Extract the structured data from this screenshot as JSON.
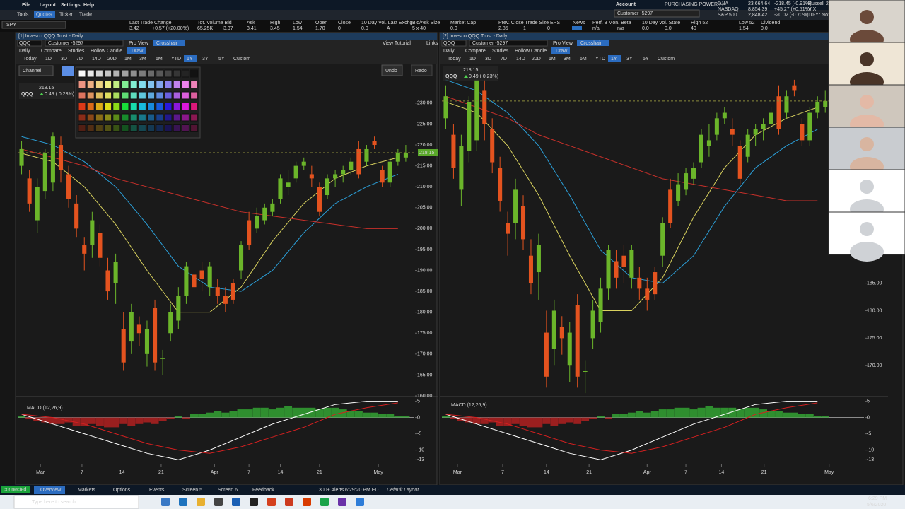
{
  "menu": [
    "File",
    "Layout",
    "Settings",
    "Help"
  ],
  "tabs": [
    "Tools",
    "Quotes",
    "Ticker",
    "Trade"
  ],
  "symbol": "SPY",
  "quote": [
    {
      "label": "Last Trade Change",
      "values": [
        "3.42",
        "+0.57 (+20.00%)"
      ]
    },
    {
      "label": "Tot. Volume Bid",
      "values": [
        "65.25K",
        "3.37"
      ]
    },
    {
      "label": "Ask",
      "values": [
        "3.41"
      ]
    },
    {
      "label": "High",
      "values": [
        "3.45"
      ]
    },
    {
      "label": "Low",
      "values": [
        "1.54"
      ]
    },
    {
      "label": "Open",
      "values": [
        "1.70"
      ]
    },
    {
      "label": "Close",
      "values": [
        "0"
      ]
    },
    {
      "label": "10 Day Vol. Last Exchg.",
      "values": [
        "0.0",
        "A"
      ]
    },
    {
      "label": "Bid/Ask Size",
      "values": [
        "5 x 40"
      ]
    },
    {
      "label": "Market Cap",
      "values": [
        "0.0"
      ]
    },
    {
      "label": "Prev. Close Trade Size EPS",
      "values": [
        "2.85",
        "1",
        "0"
      ]
    },
    {
      "label": "News",
      "values": []
    },
    {
      "label": "Perf. 3 Mon. Beta",
      "values": [
        "n/a",
        "n/a"
      ]
    },
    {
      "label": "10 Day Vol. State",
      "values": [
        "0.0",
        "0.0"
      ]
    },
    {
      "label": "High 52",
      "values": [
        "40"
      ]
    },
    {
      "label": "Low 52",
      "values": [
        "1.54"
      ]
    },
    {
      "label": "Dividend",
      "values": [
        "0.0"
      ]
    }
  ],
  "account": {
    "label": "Account",
    "name": "Customer -5297",
    "power": "PURCHASING POWER >>"
  },
  "indices": [
    {
      "name": "DJIA",
      "value": "23,664.64",
      "change": "-218.45 (-0.91%)",
      "next": "Russell 20"
    },
    {
      "name": "NASDAQ",
      "value": "8,854.39",
      "change": "+45.27 (+0.51%)",
      "next": "VIX"
    },
    {
      "name": "S&P 500",
      "value": "2,848.42",
      "change": "-20.02 (-0.70%)",
      "next": "10-Yr Note"
    }
  ],
  "panels": [
    {
      "title": "[1] Invesco QQQ Trust - Daily",
      "symbol": "QQQ",
      "account": "Customer -5297",
      "view": "Pro View",
      "mode": "Crosshair",
      "links": [
        "View Tutorial",
        "Links"
      ],
      "toolbar": [
        "Daily",
        "Compare",
        "Studies",
        "Hollow Candle",
        "Draw"
      ],
      "ranges": [
        "Today",
        "1D",
        "3D",
        "7D",
        "14D",
        "20D",
        "1M",
        "3M",
        "6M",
        "YTD",
        "1Y",
        "3Y",
        "5Y",
        "Custom"
      ],
      "active_range": "1Y",
      "drawing": {
        "tool": "Channel",
        "undo": "Undo",
        "redo": "Redo"
      },
      "legend": {
        "symbol": "QQQ",
        "price": "218.15",
        "change": "0.49 ( 0.23%)"
      },
      "price_tag": "218.15"
    },
    {
      "title": "[2] Invesco QQQ Trust - Daily",
      "symbol": "QQQ",
      "account": "Customer -5297",
      "view": "Pro View",
      "mode": "Crosshair",
      "links": [],
      "toolbar": [
        "Daily",
        "Compare",
        "Studies",
        "Hollow Candle",
        "Draw"
      ],
      "ranges": [
        "Today",
        "1D",
        "3D",
        "7D",
        "14D",
        "20D",
        "1M",
        "3M",
        "6M",
        "YTD",
        "1Y",
        "3Y",
        "5Y",
        "Custom"
      ],
      "active_range": "1Y",
      "legend": {
        "symbol": "QQQ",
        "price": "218.15",
        "change": "0.49 ( 0.23%)"
      }
    }
  ],
  "chart_data": [
    {
      "type": "candlestick",
      "up_color": "#6bb52a",
      "down_color": "#e4531f",
      "open": [
        215,
        212,
        202,
        209,
        211,
        220,
        213,
        206,
        196,
        196,
        199,
        190,
        187,
        176,
        173,
        177,
        170,
        181,
        169,
        175,
        178,
        184,
        189,
        190,
        186,
        186,
        184,
        187,
        190,
        202,
        200,
        202,
        204,
        207,
        210,
        212,
        215,
        213,
        210,
        208,
        212,
        213,
        214,
        219,
        216,
        221,
        214,
        211,
        216,
        217
      ],
      "high": [
        221,
        214,
        212,
        219,
        223,
        222,
        215,
        208,
        198,
        204,
        201,
        193,
        194,
        180,
        182,
        179,
        178,
        183,
        171,
        182,
        186,
        192,
        191,
        192,
        192,
        188,
        186,
        188,
        197,
        204,
        205,
        206,
        207,
        213,
        214,
        216,
        217,
        215,
        211,
        213,
        214,
        215,
        217,
        221,
        220,
        222,
        215,
        217,
        219,
        220
      ],
      "low": [
        213,
        204,
        199,
        207,
        209,
        211,
        205,
        198,
        190,
        193,
        191,
        183,
        182,
        166,
        170,
        172,
        167,
        166,
        165,
        173,
        176,
        182,
        184,
        185,
        184,
        182,
        180,
        182,
        188,
        195,
        199,
        201,
        203,
        206,
        208,
        211,
        214,
        210,
        203,
        207,
        210,
        211,
        213,
        212,
        215,
        219,
        210,
        210,
        215,
        216
      ],
      "close": [
        219,
        206,
        210,
        218,
        222,
        214,
        207,
        200,
        194,
        202,
        193,
        185,
        192,
        168,
        180,
        175,
        176,
        168,
        169,
        180,
        184,
        191,
        186,
        188,
        191,
        184,
        182,
        183,
        196,
        196,
        203,
        205,
        206,
        212,
        211,
        215,
        216,
        212,
        204,
        212,
        213,
        214,
        216,
        213,
        219,
        220,
        211,
        216,
        218,
        218.15
      ],
      "xlim": [
        -0.5,
        50
      ],
      "ylim": [
        160,
        238.6
      ],
      "yticks": [
        {
          "value": 230,
          "label": "230.00"
        },
        {
          "value": 225,
          "label": "225.00"
        },
        {
          "value": 220,
          "label": "220.00"
        },
        {
          "value": 215,
          "label": "215.00"
        },
        {
          "value": 210,
          "label": "210.00"
        },
        {
          "value": 205,
          "label": "205.00"
        },
        {
          "value": 200,
          "label": "200.00"
        },
        {
          "value": 195,
          "label": "195.00"
        },
        {
          "value": 190,
          "label": "190.00"
        },
        {
          "value": 185,
          "label": "185.00"
        },
        {
          "value": 180,
          "label": "180.00"
        },
        {
          "value": 175,
          "label": "175.00"
        },
        {
          "value": 170,
          "label": "170.00"
        },
        {
          "value": 165,
          "label": "165.00"
        },
        {
          "value": 160,
          "label": "160.00"
        }
      ],
      "xticks": [
        {
          "value": 2.4,
          "label": "Mar"
        },
        {
          "value": 7.7,
          "label": "7"
        },
        {
          "value": 12.8,
          "label": "14"
        },
        {
          "value": 17.8,
          "label": "21"
        },
        {
          "value": 24.6,
          "label": "Apr"
        },
        {
          "value": 29,
          "label": "7"
        },
        {
          "value": 33,
          "label": "14"
        },
        {
          "value": 38,
          "label": "21"
        },
        {
          "value": 45.5,
          "label": "May"
        }
      ],
      "ma": [
        {
          "color": "#d9d25e",
          "x": [
            0,
            4,
            8,
            12,
            16,
            20,
            24,
            28,
            32,
            36,
            40,
            44,
            48
          ],
          "values": [
            218,
            216,
            210,
            201,
            190,
            180,
            180,
            186,
            197,
            206,
            212,
            215,
            217
          ]
        },
        {
          "color": "#2b9fd8",
          "x": [
            0,
            4,
            8,
            12,
            16,
            20,
            24,
            28,
            32,
            36,
            40,
            44,
            48
          ],
          "values": [
            222,
            220,
            216,
            210,
            201,
            191,
            186,
            185,
            190,
            199,
            206,
            210,
            213
          ]
        },
        {
          "color": "#c8302a",
          "x": [
            0,
            4,
            8,
            12,
            16,
            20,
            24,
            28,
            32,
            36,
            40,
            44,
            48
          ],
          "values": [
            219,
            217,
            215,
            212,
            210,
            208,
            206,
            204,
            203,
            202,
            201,
            200,
            200
          ]
        }
      ],
      "macd": {
        "label": "MACD (12,26,9)",
        "ylim": [
          -14,
          6
        ],
        "yticks": [
          5,
          0,
          -5,
          -10,
          -13
        ],
        "up_color": "#2f8f2f",
        "down_color": "#9a1f1f",
        "line_color": "#ffffff",
        "signal_color": "#d42020",
        "histogram": [
          0.5,
          -0.5,
          -1,
          -1.5,
          -2,
          -2,
          -1.5,
          -2.5,
          -2.5,
          -2,
          -2.5,
          -3,
          -3,
          -2,
          -2.5,
          -2,
          -1.5,
          -2,
          -1,
          -0.5,
          0.5,
          -0.5,
          1,
          1,
          1.5,
          2,
          1.5,
          2,
          2.5,
          2.5,
          3,
          3,
          2.5,
          3,
          3.5,
          3,
          3,
          3,
          2.5,
          3,
          3,
          2.5,
          2,
          2,
          1.5,
          1.5,
          1,
          1,
          0.5,
          0.5
        ],
        "x": [
          0,
          4,
          8,
          12,
          16,
          20,
          24,
          28,
          32,
          36,
          40,
          44,
          48
        ],
        "line": [
          1,
          -2,
          -5,
          -8,
          -11,
          -13,
          -10,
          -6,
          -2,
          1,
          4,
          5,
          5
        ],
        "signal": [
          1,
          0,
          -2,
          -5,
          -8,
          -10,
          -11,
          -9,
          -6,
          -3,
          1,
          3,
          4.5
        ]
      }
    },
    {
      "type": "candlestick",
      "up_color": "#6bb52a",
      "down_color": "#e4531f",
      "open": [
        215,
        212,
        202,
        209,
        211,
        220,
        213,
        206,
        196,
        196,
        199,
        190,
        187,
        176,
        173,
        177,
        170,
        181,
        169,
        175,
        178,
        184,
        189,
        190,
        186,
        186,
        184,
        187,
        190,
        202,
        200,
        202,
        204,
        207,
        210,
        212,
        215,
        213,
        210,
        208,
        212,
        213,
        214,
        219,
        216,
        221,
        214,
        211,
        216,
        217
      ],
      "high": [
        221,
        214,
        212,
        219,
        223,
        222,
        215,
        208,
        198,
        204,
        201,
        193,
        194,
        180,
        182,
        179,
        178,
        183,
        171,
        182,
        186,
        192,
        191,
        192,
        192,
        188,
        186,
        188,
        197,
        204,
        205,
        206,
        207,
        213,
        214,
        216,
        217,
        215,
        211,
        213,
        214,
        215,
        217,
        221,
        220,
        222,
        215,
        217,
        219,
        220
      ],
      "low": [
        213,
        204,
        199,
        207,
        209,
        211,
        205,
        198,
        190,
        193,
        191,
        183,
        182,
        166,
        170,
        172,
        167,
        166,
        165,
        173,
        176,
        182,
        184,
        185,
        184,
        182,
        180,
        182,
        188,
        195,
        199,
        201,
        203,
        206,
        208,
        211,
        214,
        210,
        203,
        207,
        210,
        211,
        213,
        212,
        215,
        219,
        210,
        210,
        215,
        216
      ],
      "close": [
        219,
        206,
        210,
        218,
        222,
        214,
        207,
        200,
        194,
        202,
        193,
        185,
        192,
        168,
        180,
        175,
        176,
        168,
        169,
        180,
        184,
        191,
        186,
        188,
        191,
        184,
        182,
        183,
        196,
        196,
        203,
        205,
        206,
        212,
        211,
        215,
        216,
        212,
        204,
        212,
        213,
        214,
        216,
        213,
        219,
        220,
        211,
        216,
        218,
        218.15
      ],
      "xlim": [
        -0.5,
        54
      ],
      "ylim": [
        164.5,
        224.3
      ],
      "yticks": [
        {
          "value": 190,
          "label": "190.00"
        },
        {
          "value": 185,
          "label": "185.00"
        },
        {
          "value": 180,
          "label": "180.00"
        },
        {
          "value": 175,
          "label": "175.00"
        },
        {
          "value": 170,
          "label": "170.00"
        }
      ],
      "xticks": [
        {
          "value": 1.5,
          "label": "Mar"
        },
        {
          "value": 7.35,
          "label": "7"
        },
        {
          "value": 13,
          "label": "14"
        },
        {
          "value": 18.5,
          "label": "21"
        },
        {
          "value": 26,
          "label": "Apr"
        },
        {
          "value": 31,
          "label": "7"
        },
        {
          "value": 35.6,
          "label": "14"
        },
        {
          "value": 41.1,
          "label": "21"
        },
        {
          "value": 49.5,
          "label": "May"
        }
      ],
      "ma": [
        {
          "color": "#d9d25e",
          "x": [
            0,
            4,
            8,
            12,
            16,
            20,
            24,
            28,
            32,
            36,
            40,
            44,
            48
          ],
          "values": [
            218,
            216,
            210,
            201,
            190,
            180,
            180,
            186,
            197,
            206,
            212,
            215,
            217
          ]
        },
        {
          "color": "#2b9fd8",
          "x": [
            0,
            4,
            8,
            12,
            16,
            20,
            24,
            28,
            32,
            36,
            40,
            44,
            48
          ],
          "values": [
            222,
            220,
            216,
            210,
            201,
            191,
            186,
            185,
            190,
            199,
            206,
            210,
            213
          ]
        },
        {
          "color": "#c8302a",
          "x": [
            0,
            4,
            8,
            12,
            16,
            20,
            24,
            28,
            32,
            36,
            40,
            44,
            48
          ],
          "values": [
            219,
            217,
            215,
            212,
            210,
            208,
            206,
            204,
            203,
            202,
            201,
            200,
            200
          ]
        }
      ],
      "macd": {
        "label": "MACD (12,26,9)",
        "ylim": [
          -14,
          6
        ],
        "yticks": [
          5,
          0,
          -5,
          -10,
          -13
        ],
        "up_color": "#2f8f2f",
        "down_color": "#9a1f1f",
        "line_color": "#ffffff",
        "signal_color": "#d42020",
        "histogram": [
          0.5,
          -0.5,
          -1,
          -1.5,
          -2,
          -2,
          -1.5,
          -2.5,
          -2.5,
          -2,
          -2.5,
          -3,
          -3,
          -2,
          -2.5,
          -2,
          -1.5,
          -2,
          -1,
          -0.5,
          0.5,
          -0.5,
          1,
          1,
          1.5,
          2,
          1.5,
          2,
          2.5,
          2.5,
          3,
          3,
          2.5,
          3,
          3.5,
          3,
          3,
          3,
          2.5,
          3,
          3,
          2.5,
          2,
          2,
          1.5,
          1.5,
          1,
          1,
          0.5,
          0.5
        ],
        "x": [
          0,
          4,
          8,
          12,
          16,
          20,
          24,
          28,
          32,
          36,
          40,
          44,
          48
        ],
        "line": [
          1,
          -2,
          -5,
          -8,
          -11,
          -13,
          -10,
          -6,
          -2,
          1,
          4,
          5,
          5
        ],
        "signal": [
          1,
          0,
          -2,
          -5,
          -8,
          -10,
          -11,
          -9,
          -6,
          -3,
          1,
          3,
          4.5
        ]
      }
    }
  ],
  "status": {
    "connection": "connected",
    "tabs": [
      "Overview",
      "Markets",
      "Options",
      "Events",
      "Screen 5",
      "Screen 6"
    ],
    "feedback": "Feedback",
    "alerts": "300+ Alerts",
    "time": "6:29:20 PM EDT",
    "layout": "Default Layout"
  },
  "taskbar": {
    "search": "Type here to search",
    "time": "6:29 PM",
    "date": "5/6/2020"
  }
}
